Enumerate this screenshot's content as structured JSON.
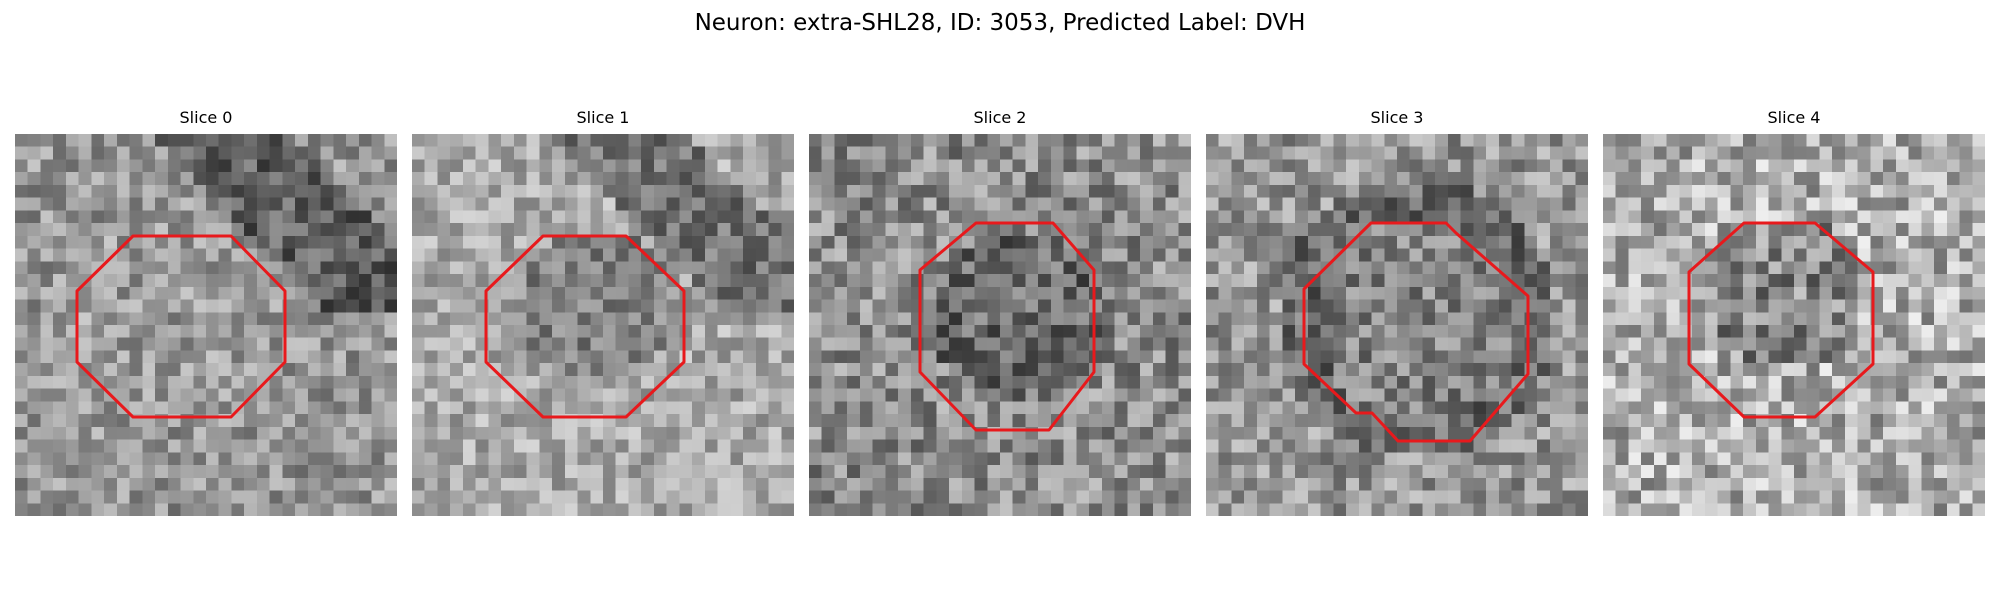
{
  "figure": {
    "title": "Neuron: extra-SHL28, ID: 3053, Predicted Label: DVH"
  },
  "slices": [
    {
      "title": "Slice 0",
      "background": "mid-grey noise, darker diagonal band upper right",
      "contour_color": "#e8191c"
    },
    {
      "title": "Slice 1",
      "background": "light grey noise with darker circular cell and dark band upper right",
      "contour_color": "#e8191c"
    },
    {
      "title": "Slice 2",
      "background": "mid-dark grey noise with darker centre",
      "contour_color": "#e8191c"
    },
    {
      "title": "Slice 3",
      "background": "dark ring of grey noise around cell",
      "contour_color": "#e8191c"
    },
    {
      "title": "Slice 4",
      "background": "high-contrast light grey noise",
      "contour_color": "#e8191c"
    }
  ]
}
